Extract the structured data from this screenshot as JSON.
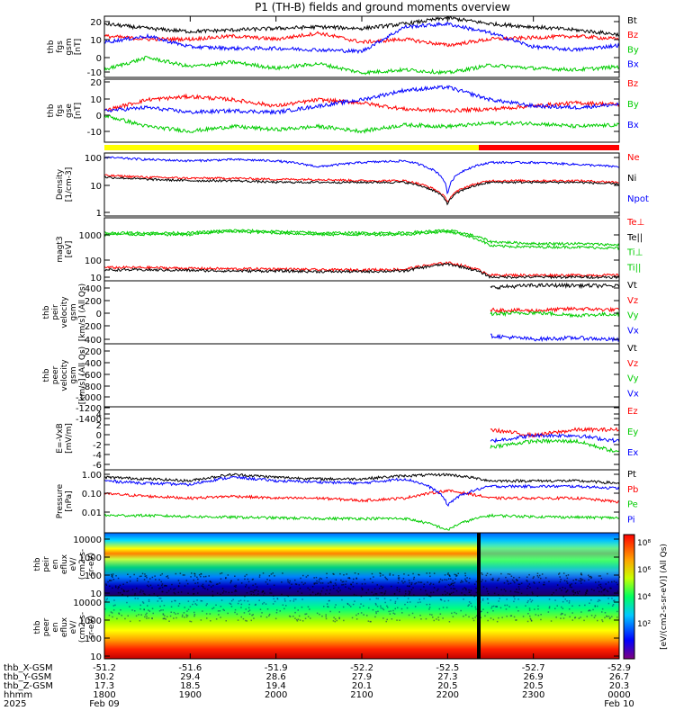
{
  "title": "P1 (TH-B) fields and ground moments overview",
  "colors": {
    "black": "#000000",
    "red": "#ff0000",
    "green": "#00cc00",
    "blue": "#0000ff",
    "yellow": "#ffff00"
  },
  "panels": [
    {
      "id": "fgs-gsm",
      "ylabel": [
        "thb",
        "fgs",
        "gsm",
        "[nT]"
      ],
      "yticks": [
        "20",
        "10",
        "0",
        "-10"
      ],
      "legend": [
        {
          "text": "Bt",
          "color": "black"
        },
        {
          "text": "Bz",
          "color": "red"
        },
        {
          "text": "By",
          "color": "green"
        },
        {
          "text": "Bx",
          "color": "blue"
        }
      ]
    },
    {
      "id": "fgs-gse",
      "ylabel": [
        "thb",
        "fgs",
        "gse",
        "[nT]"
      ],
      "yticks": [
        "20",
        "10",
        "0",
        "-10"
      ],
      "legend": [
        {
          "text": "Bz",
          "color": "red"
        },
        {
          "text": "By",
          "color": "green"
        },
        {
          "text": "Bx",
          "color": "blue"
        }
      ]
    },
    {
      "id": "density",
      "ylabel": [
        "Density",
        "[1/cm-3]"
      ],
      "yticks": [
        "100",
        "10",
        "1"
      ],
      "legend": [
        {
          "text": "Ne",
          "color": "red"
        },
        {
          "text": "Ni",
          "color": "black"
        },
        {
          "text": "Npot",
          "color": "blue"
        }
      ]
    },
    {
      "id": "temperature",
      "ylabel": [
        "magt3",
        "[eV]"
      ],
      "yticks": [
        "1000",
        "100",
        "10"
      ],
      "legend": [
        {
          "text": "Te⊥",
          "color": "red"
        },
        {
          "text": "Te||",
          "color": "black"
        },
        {
          "text": "Ti⊥",
          "color": "green"
        },
        {
          "text": "Ti||",
          "color": "green"
        }
      ]
    },
    {
      "id": "peir-velocity",
      "ylabel": [
        "thb",
        "peir",
        "velocity",
        "gsm",
        "[km/s] (All Qs)"
      ],
      "yticks": [
        "400",
        "200",
        "0",
        "-200",
        "-400"
      ],
      "legend": [
        {
          "text": "Vt",
          "color": "black"
        },
        {
          "text": "Vz",
          "color": "red"
        },
        {
          "text": "Vy",
          "color": "green"
        },
        {
          "text": "Vx",
          "color": "blue"
        }
      ]
    },
    {
      "id": "peer-velocity",
      "ylabel": [
        "thb",
        "peer",
        "velocity",
        "gsm",
        "[km/s] (All Qs)"
      ],
      "yticks": [
        "-200",
        "-400",
        "-600",
        "-800",
        "-1000",
        "-1200",
        "-1400"
      ],
      "legend": [
        {
          "text": "Vt",
          "color": "black"
        },
        {
          "text": "Vz",
          "color": "red"
        },
        {
          "text": "Vy",
          "color": "green"
        },
        {
          "text": "Vx",
          "color": "blue"
        }
      ]
    },
    {
      "id": "efield",
      "ylabel": [
        "E=-VxB",
        "[mV/m]"
      ],
      "yticks": [
        "4",
        "2",
        "0",
        "-2",
        "-4",
        "-6"
      ],
      "legend": [
        {
          "text": "Ez",
          "color": "red"
        },
        {
          "text": "Ey",
          "color": "green"
        },
        {
          "text": "Ex",
          "color": "blue"
        }
      ]
    },
    {
      "id": "pressure",
      "ylabel": [
        "Pressure",
        "[nPa]"
      ],
      "yticks": [
        "1.00",
        "0.10",
        "0.01"
      ],
      "legend": [
        {
          "text": "Pt",
          "color": "black"
        },
        {
          "text": "Pb",
          "color": "red"
        },
        {
          "text": "Pe",
          "color": "green"
        },
        {
          "text": "Pi",
          "color": "blue"
        }
      ]
    },
    {
      "id": "peir-eflux",
      "ylabel": [
        "thb",
        "peir",
        "en",
        "eflux",
        "eV/",
        "(cm2-s-",
        "sr-eV)"
      ],
      "yticks": [
        "10000",
        "1000",
        "100",
        "10"
      ]
    },
    {
      "id": "peer-eflux",
      "ylabel": [
        "thb",
        "peer",
        "en",
        "eflux",
        "eV/",
        "(cm2-s-",
        "sr-eV)"
      ],
      "yticks": [
        "10000",
        "1000",
        "100",
        "10"
      ]
    }
  ],
  "colorbar": {
    "ticks": [
      "10⁸",
      "10⁶",
      "10⁴",
      "10²"
    ],
    "label": "[eV/(cm2-s-sr-eV)] (All Qs)"
  },
  "xaxis": {
    "rows": [
      {
        "label": "thb_X-GSM",
        "values": [
          "-51.2",
          "-51.6",
          "-51.9",
          "-52.2",
          "-52.5",
          "-52.7",
          "-52.9"
        ]
      },
      {
        "label": "thb_Y-GSM",
        "values": [
          "30.2",
          "29.4",
          "28.6",
          "27.9",
          "27.3",
          "26.9",
          "26.7"
        ]
      },
      {
        "label": "thb_Z-GSM",
        "values": [
          "17.3",
          "18.5",
          "19.4",
          "20.1",
          "20.5",
          "20.5",
          "20.3"
        ]
      },
      {
        "label": "hhmm",
        "values": [
          "1800",
          "1900",
          "2000",
          "2100",
          "2200",
          "2300",
          "0000"
        ]
      }
    ],
    "year": "2025",
    "date_start": "Feb 09",
    "date_end": "Feb 10"
  },
  "chart_data": {
    "type": "line",
    "x_hours_labels": [
      "1800",
      "1900",
      "2000",
      "2100",
      "2200",
      "2300",
      "0000"
    ],
    "x": [
      18,
      18.5,
      19,
      19.5,
      20,
      20.5,
      21,
      21.5,
      22,
      22.5,
      23,
      23.5,
      24
    ],
    "panels": [
      {
        "panel": "fgs-gsm",
        "ylim": [
          -15,
          25
        ],
        "series": [
          {
            "name": "Bt",
            "values": [
              20,
              17,
              15,
              16,
              17,
              18,
              17,
              20,
              24,
              20,
              18,
              16,
              13
            ]
          },
          {
            "name": "Bz",
            "values": [
              12,
              10,
              10,
              12,
              10,
              14,
              8,
              10,
              6,
              10,
              11,
              12,
              10
            ]
          },
          {
            "name": "By",
            "values": [
              -10,
              -2,
              -8,
              -5,
              -9,
              -6,
              -12,
              -10,
              -12,
              -7,
              -9,
              -10,
              -8
            ]
          },
          {
            "name": "Bx",
            "values": [
              8,
              12,
              5,
              4,
              4,
              3,
              2,
              18,
              20,
              14,
              5,
              3,
              6
            ]
          }
        ]
      },
      {
        "panel": "fgs-gse",
        "ylim": [
          -15,
          25
        ],
        "series": [
          {
            "name": "Bz",
            "values": [
              5,
              12,
              14,
              12,
              8,
              12,
              10,
              6,
              5,
              6,
              8,
              10,
              9
            ]
          },
          {
            "name": "By",
            "values": [
              2,
              -5,
              -8,
              -5,
              -7,
              -5,
              -8,
              -4,
              -5,
              -3,
              -3,
              -5,
              -4
            ]
          },
          {
            "name": "Bx",
            "values": [
              5,
              7,
              4,
              5,
              4,
              8,
              12,
              18,
              20,
              12,
              8,
              7,
              9
            ]
          }
        ]
      },
      {
        "panel": "density",
        "ylim": [
          0.1,
          150
        ],
        "log": true,
        "series": [
          {
            "name": "Ne",
            "values": [
              11,
              9,
              8,
              8,
              7,
              7,
              6,
              6,
              0.5,
              6,
              6,
              6,
              5
            ]
          },
          {
            "name": "Ni",
            "values": [
              9,
              7,
              6,
              6,
              5,
              5,
              5,
              5,
              0.4,
              5,
              5,
              5,
              4
            ]
          },
          {
            "name": "Npot",
            "values": [
              90,
              70,
              60,
              70,
              60,
              30,
              50,
              60,
              1,
              50,
              50,
              40,
              30
            ]
          }
        ]
      },
      {
        "panel": "temperature",
        "ylim": [
          7,
          3000
        ],
        "log": true,
        "series": [
          {
            "name": "Te⊥",
            "values": [
              25,
              25,
              23,
              22,
              22,
              20,
              20,
              21,
              40,
              12,
              12,
              12,
              12
            ]
          },
          {
            "name": "Te||",
            "values": [
              20,
              20,
              19,
              18,
              18,
              17,
              17,
              18,
              35,
              10,
              10,
              10,
              10
            ]
          },
          {
            "name": "Ti⊥",
            "values": [
              700,
              700,
              700,
              900,
              800,
              700,
              700,
              700,
              900,
              300,
              250,
              250,
              220
            ]
          },
          {
            "name": "Ti||",
            "values": [
              600,
              600,
              600,
              800,
              700,
              600,
              600,
              600,
              800,
              200,
              180,
              180,
              160
            ]
          }
        ]
      },
      {
        "panel": "peir-velocity",
        "ylim": [
          -450,
          500
        ],
        "series": [
          {
            "name": "Vt",
            "values": [
              null,
              null,
              null,
              null,
              null,
              null,
              null,
              null,
              null,
              400,
              430,
              430,
              420
            ]
          },
          {
            "name": "Vz",
            "values": [
              null,
              null,
              null,
              null,
              null,
              null,
              null,
              null,
              null,
              60,
              50,
              80,
              60
            ]
          },
          {
            "name": "Vy",
            "values": [
              null,
              null,
              null,
              null,
              null,
              null,
              null,
              null,
              null,
              0,
              20,
              -20,
              0
            ]
          },
          {
            "name": "Vx",
            "values": [
              null,
              null,
              null,
              null,
              null,
              null,
              null,
              null,
              null,
              -330,
              -380,
              -360,
              -390
            ]
          }
        ]
      },
      {
        "panel": "efield",
        "ylim": [
          -6,
          5
        ],
        "series": [
          {
            "name": "Ez",
            "values": [
              null,
              null,
              null,
              null,
              null,
              null,
              null,
              null,
              null,
              1,
              0,
              1,
              1
            ]
          },
          {
            "name": "Ey",
            "values": [
              null,
              null,
              null,
              null,
              null,
              null,
              null,
              null,
              null,
              -2,
              -1,
              -1,
              -3
            ]
          },
          {
            "name": "Ex",
            "values": [
              null,
              null,
              null,
              null,
              null,
              null,
              null,
              null,
              null,
              -1,
              0,
              0,
              -1
            ]
          }
        ]
      },
      {
        "panel": "pressure",
        "ylim": [
          0.004,
          1.4
        ],
        "log": true,
        "series": [
          {
            "name": "Pt",
            "values": [
              0.7,
              0.6,
              0.5,
              0.9,
              0.7,
              0.6,
              0.6,
              0.8,
              0.9,
              0.5,
              0.5,
              0.5,
              0.4
            ]
          },
          {
            "name": "Pb",
            "values": [
              0.15,
              0.12,
              0.1,
              0.12,
              0.1,
              0.1,
              0.08,
              0.1,
              0.2,
              0.1,
              0.1,
              0.1,
              0.07
            ]
          },
          {
            "name": "Pe",
            "values": [
              0.02,
              0.02,
              0.018,
              0.017,
              0.016,
              0.015,
              0.015,
              0.015,
              0.005,
              0.02,
              0.018,
              0.017,
              0.016
            ]
          },
          {
            "name": "Pi",
            "values": [
              0.5,
              0.4,
              0.35,
              0.7,
              0.5,
              0.45,
              0.4,
              0.6,
              0.05,
              0.3,
              0.3,
              0.3,
              0.25
            ]
          }
        ]
      }
    ]
  }
}
